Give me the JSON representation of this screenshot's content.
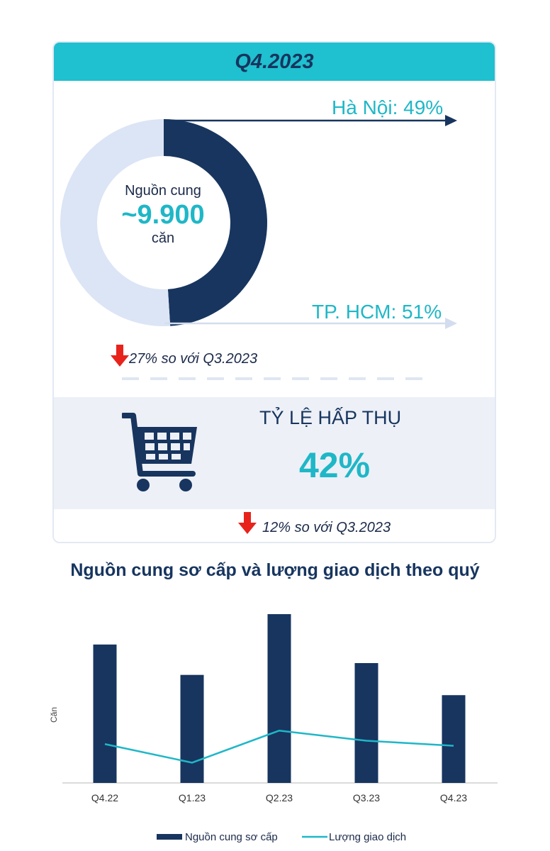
{
  "card": {
    "quarter_label": "Q4.2023",
    "supply_label": "Nguồn cung",
    "supply_value": "~9.900",
    "supply_unit": "căn",
    "hanoi_label": "Hà Nội: 49%",
    "hcm_label": "TP. HCM: 51%",
    "supply_change": "27% so với Q3.2023",
    "absorption_title": "TỶ LỆ HẤP THỤ",
    "absorption_value": "42%",
    "absorption_change": "12%  so với Q3.2023"
  },
  "colors": {
    "navy": "#17355f",
    "light_blue": "#dce5f5",
    "teal": "#1fc0cf",
    "red": "#e8231c"
  },
  "icons": [
    "shopping-cart-icon",
    "arrow-down-icon"
  ],
  "chart_data": [
    {
      "type": "pie",
      "subtype": "donut",
      "categories": [
        "Hà Nội",
        "TP. HCM"
      ],
      "values": [
        49,
        51
      ],
      "colors": [
        "#17355f",
        "#dce5f5"
      ]
    },
    {
      "type": "bar",
      "title": "Nguồn cung sơ cấp và lượng giao dịch theo quý",
      "ylabel": "Căn",
      "categories": [
        "Q4.22",
        "Q1.23",
        "Q2.23",
        "Q3.23",
        "Q4.23"
      ],
      "ylim": [
        0,
        100
      ],
      "series": [
        {
          "name": "Nguồn cung sơ cấp",
          "type": "bar",
          "values": [
            82,
            64,
            100,
            71,
            52
          ]
        },
        {
          "name": "Lượng giao dịch",
          "type": "line",
          "values": [
            23,
            12,
            31,
            25,
            22
          ]
        }
      ],
      "grid": false,
      "legend": "bottom-center"
    }
  ]
}
